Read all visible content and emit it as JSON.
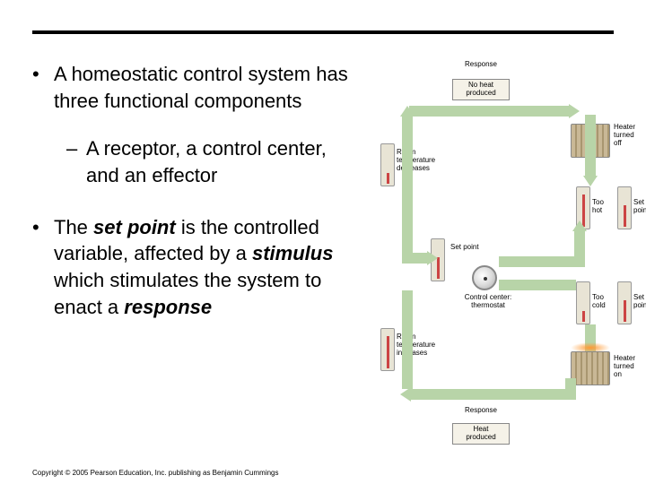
{
  "bullets": {
    "main1": "A homeostatic control system has three functional components",
    "sub1": "A receptor, a control center, and an effector",
    "main2_html": "The <span class='bold-italic'>set point</span> is the controlled variable, affected by a <span class='bold-italic'>stimulus</span> which stimulates the system to enact a <span class='bold-italic'>response</span>"
  },
  "copyright": "Copyright © 2005 Pearson Education, Inc. publishing as Benjamin Cummings",
  "diagram": {
    "response_top": "Response",
    "no_heat": "No heat\nproduced",
    "heater_off": "Heater\nturned\noff",
    "room_temp_dec": "Room\ntemperature\ndecreases",
    "too_hot": "Too\nhot",
    "set_point_r1": "Set\npoint",
    "set_point_mid": "Set point",
    "control_center": "Control center:\nthermostat",
    "too_cold": "Too\ncold",
    "set_point_r2": "Set\npoint",
    "room_temp_inc": "Room\ntemperature\nincreases",
    "heater_on": "Heater\nturned\non",
    "response_bot": "Response",
    "heat_produced": "Heat\nproduced"
  },
  "colors": {
    "arrow": "#b8d4a8",
    "radiator": "#c9b896",
    "background": "#ffffff"
  }
}
